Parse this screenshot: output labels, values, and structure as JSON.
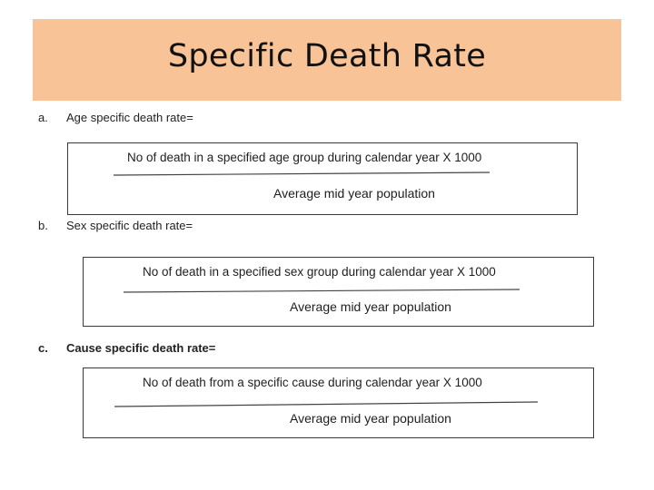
{
  "slide": {
    "title": "Specific Death Rate",
    "items": [
      {
        "letter": "a.",
        "label": "Age specific death rate=",
        "numerator": "No of death in a specified age group during  calendar year X 1000",
        "denominator": "Average mid year population"
      },
      {
        "letter": "b.",
        "label": "Sex specific death rate=",
        "numerator": "No of death in a specified sex group during  calendar year X 1000",
        "denominator": "Average mid year population"
      },
      {
        "letter": "c.",
        "label": "Cause specific death rate=",
        "numerator": "No of death from a specific cause during  calendar year X 1000",
        "denominator": "Average mid year population"
      }
    ]
  }
}
